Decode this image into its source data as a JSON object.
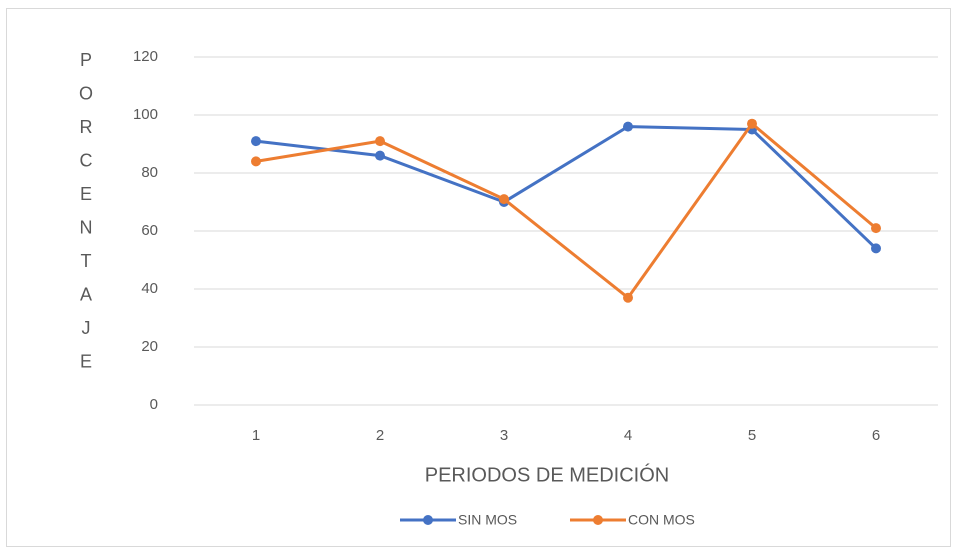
{
  "chart_data": {
    "type": "line",
    "x_label": "PERIODOS DE MEDICIÓN",
    "y_label": "PORCENTAJE",
    "categories": [
      "1",
      "2",
      "3",
      "4",
      "5",
      "6"
    ],
    "series": [
      {
        "name": "SIN MOS",
        "color": "#4472c4",
        "values": [
          91,
          86,
          70,
          96,
          95,
          54
        ]
      },
      {
        "name": "CON MOS",
        "color": "#ed7d31",
        "values": [
          84,
          91,
          71,
          37,
          97,
          61
        ]
      }
    ],
    "ylim": [
      0,
      120
    ],
    "yticks": [
      0,
      20,
      40,
      60,
      80,
      100,
      120
    ],
    "grid": true,
    "legend": "bottom"
  }
}
